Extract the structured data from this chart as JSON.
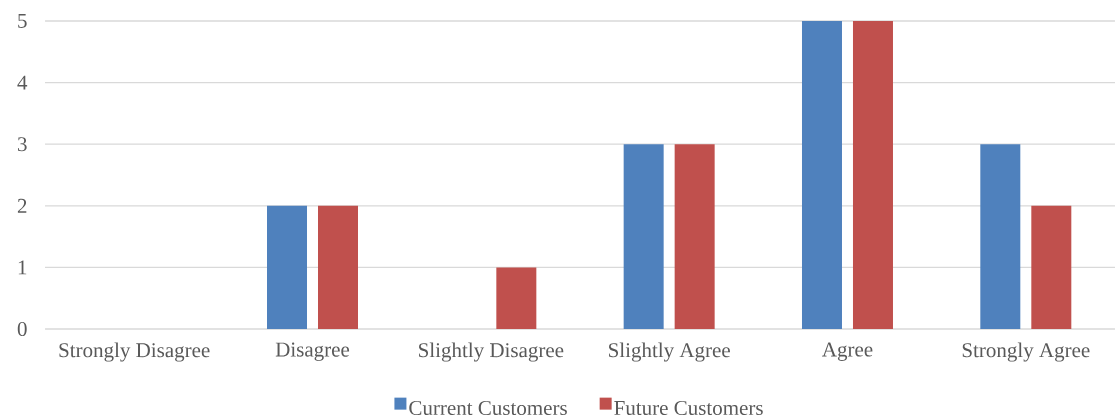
{
  "chart_data": {
    "type": "bar",
    "categories": [
      "Strongly Disagree",
      "Disagree",
      "Slightly Disagree",
      "Slightly Agree",
      "Agree",
      "Strongly Agree"
    ],
    "series": [
      {
        "name": "Current Customers",
        "color": "#4f81bd",
        "values": [
          0,
          2,
          0,
          3,
          5,
          3
        ]
      },
      {
        "name": "Future Customers",
        "color": "#c0504d",
        "values": [
          0,
          2,
          1,
          3,
          5,
          2
        ]
      }
    ],
    "ylim": [
      0,
      5
    ],
    "yticks": [
      0,
      1,
      2,
      3,
      4,
      5
    ],
    "grid": "y",
    "legend": "bottom"
  }
}
